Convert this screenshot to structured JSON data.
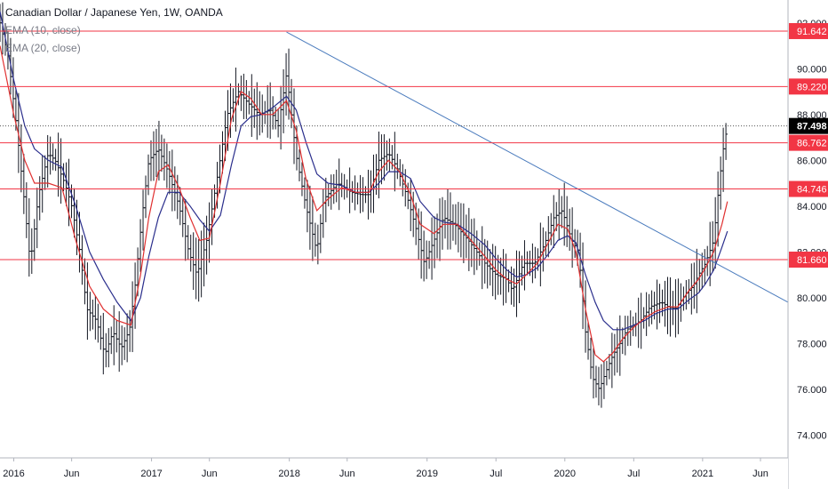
{
  "chart_data": {
    "type": "line",
    "title": "Canadian Dollar / Japanese Yen, 1W, OANDA",
    "indicators": [
      "EMA (10, close)",
      "EMA (20, close)"
    ],
    "x_axis_labels": [
      "2016",
      "Jun",
      "2017",
      "Jun",
      "2018",
      "Jun",
      "2019",
      "Jul",
      "2020",
      "Jul",
      "2021",
      "Jun"
    ],
    "x_axis_label_t": [
      2016.0,
      2016.42,
      2017.0,
      2017.42,
      2018.0,
      2018.42,
      2019.0,
      2019.5,
      2020.0,
      2020.5,
      2021.0,
      2021.42
    ],
    "xlim": [
      2015.9,
      2021.62
    ],
    "ylim": [
      73.0,
      93.0
    ],
    "y_ticks": [
      74.0,
      76.0,
      78.0,
      80.0,
      82.0,
      84.0,
      86.0,
      88.0,
      90.0,
      92.0
    ],
    "y_tick_labels": [
      "74.000",
      "76.000",
      "78.000",
      "80.000",
      "82.000",
      "84.000",
      "86.000",
      "88.000",
      "90.000",
      "92.000"
    ],
    "horizontal_levels": [
      91.642,
      89.22,
      86.762,
      84.746,
      81.66
    ],
    "horizontal_level_labels": [
      "91.642",
      "89.220",
      "86.762",
      "84.746",
      "81.660"
    ],
    "last_price": 87.498,
    "last_price_label": "87.498",
    "trendline": [
      [
        2017.98,
        91.6
      ],
      [
        2021.62,
        79.8
      ]
    ],
    "series": [
      {
        "values": [
          [
            2015.9,
            92.0
          ],
          [
            2015.96,
            90.5
          ],
          [
            2016.02,
            87.5
          ],
          [
            2016.08,
            84.0
          ],
          [
            2016.12,
            81.5
          ],
          [
            2016.18,
            84.5
          ],
          [
            2016.25,
            86.3
          ],
          [
            2016.3,
            86.0
          ],
          [
            2016.37,
            85.0
          ],
          [
            2016.42,
            84.0
          ],
          [
            2016.48,
            82.0
          ],
          [
            2016.53,
            79.5
          ],
          [
            2016.6,
            79.0
          ],
          [
            2016.66,
            77.5
          ],
          [
            2016.72,
            78.5
          ],
          [
            2016.78,
            77.8
          ],
          [
            2016.84,
            78.6
          ],
          [
            2016.88,
            80.5
          ],
          [
            2016.93,
            83.5
          ],
          [
            2016.98,
            86.0
          ],
          [
            2017.05,
            86.5
          ],
          [
            2017.12,
            85.5
          ],
          [
            2017.2,
            84.0
          ],
          [
            2017.27,
            82.0
          ],
          [
            2017.33,
            81.0
          ],
          [
            2017.4,
            82.5
          ],
          [
            2017.47,
            85.0
          ],
          [
            2017.55,
            88.0
          ],
          [
            2017.63,
            89.0
          ],
          [
            2017.7,
            88.5
          ],
          [
            2017.78,
            88.0
          ],
          [
            2017.86,
            88.2
          ],
          [
            2017.92,
            87.5
          ],
          [
            2017.98,
            89.8
          ],
          [
            2018.05,
            86.2
          ],
          [
            2018.12,
            84.0
          ],
          [
            2018.2,
            82.0
          ],
          [
            2018.25,
            84.3
          ],
          [
            2018.35,
            85.0
          ],
          [
            2018.45,
            84.6
          ],
          [
            2018.52,
            84.5
          ],
          [
            2018.58,
            84.5
          ],
          [
            2018.65,
            86.0
          ],
          [
            2018.72,
            86.3
          ],
          [
            2018.78,
            85.7
          ],
          [
            2018.85,
            84.5
          ],
          [
            2018.92,
            83.0
          ],
          [
            2018.98,
            81.5
          ],
          [
            2019.05,
            82.5
          ],
          [
            2019.12,
            83.5
          ],
          [
            2019.2,
            83.2
          ],
          [
            2019.3,
            82.5
          ],
          [
            2019.42,
            81.5
          ],
          [
            2019.5,
            81.0
          ],
          [
            2019.58,
            80.8
          ],
          [
            2019.62,
            80.3
          ],
          [
            2019.7,
            81.5
          ],
          [
            2019.78,
            81.5
          ],
          [
            2019.85,
            82.3
          ],
          [
            2019.92,
            83.5
          ],
          [
            2019.98,
            83.8
          ],
          [
            2020.05,
            82.5
          ],
          [
            2020.1,
            82.0
          ],
          [
            2020.15,
            78.5
          ],
          [
            2020.2,
            76.5
          ],
          [
            2020.25,
            76.0
          ],
          [
            2020.3,
            76.8
          ],
          [
            2020.35,
            77.5
          ],
          [
            2020.4,
            78.0
          ],
          [
            2020.45,
            78.6
          ],
          [
            2020.55,
            79.0
          ],
          [
            2020.62,
            79.6
          ],
          [
            2020.7,
            79.8
          ],
          [
            2020.75,
            79.6
          ],
          [
            2020.8,
            79.5
          ],
          [
            2020.88,
            80.2
          ],
          [
            2020.93,
            80.5
          ],
          [
            2020.97,
            81.0
          ],
          [
            2021.02,
            81.5
          ],
          [
            2021.08,
            82.5
          ],
          [
            2021.12,
            85.0
          ],
          [
            2021.15,
            86.5
          ],
          [
            2021.18,
            87.498
          ]
        ]
      },
      {
        "values": [
          [
            2015.9,
            91.0
          ],
          [
            2016.0,
            88.0
          ],
          [
            2016.08,
            86.0
          ],
          [
            2016.15,
            85.0
          ],
          [
            2016.25,
            85.0
          ],
          [
            2016.35,
            84.8
          ],
          [
            2016.45,
            82.5
          ],
          [
            2016.55,
            80.5
          ],
          [
            2016.65,
            79.5
          ],
          [
            2016.75,
            79.0
          ],
          [
            2016.85,
            78.8
          ],
          [
            2016.92,
            81.0
          ],
          [
            2016.98,
            83.5
          ],
          [
            2017.05,
            85.5
          ],
          [
            2017.12,
            85.8
          ],
          [
            2017.2,
            84.8
          ],
          [
            2017.28,
            83.5
          ],
          [
            2017.35,
            82.5
          ],
          [
            2017.42,
            82.6
          ],
          [
            2017.5,
            85.0
          ],
          [
            2017.58,
            87.8
          ],
          [
            2017.65,
            89.0
          ],
          [
            2017.72,
            88.7
          ],
          [
            2017.8,
            88.0
          ],
          [
            2017.88,
            88.0
          ],
          [
            2017.98,
            88.6
          ],
          [
            2018.05,
            87.3
          ],
          [
            2018.12,
            85.2
          ],
          [
            2018.2,
            83.8
          ],
          [
            2018.28,
            84.3
          ],
          [
            2018.38,
            84.8
          ],
          [
            2018.48,
            84.6
          ],
          [
            2018.58,
            84.6
          ],
          [
            2018.65,
            85.5
          ],
          [
            2018.72,
            86.0
          ],
          [
            2018.8,
            85.5
          ],
          [
            2018.88,
            84.5
          ],
          [
            2018.95,
            83.2
          ],
          [
            2019.05,
            82.8
          ],
          [
            2019.12,
            83.2
          ],
          [
            2019.22,
            83.2
          ],
          [
            2019.32,
            82.5
          ],
          [
            2019.42,
            81.8
          ],
          [
            2019.5,
            81.2
          ],
          [
            2019.58,
            80.8
          ],
          [
            2019.65,
            80.6
          ],
          [
            2019.72,
            81.0
          ],
          [
            2019.8,
            81.5
          ],
          [
            2019.88,
            82.4
          ],
          [
            2019.95,
            83.2
          ],
          [
            2020.02,
            83.0
          ],
          [
            2020.08,
            82.0
          ],
          [
            2020.15,
            79.5
          ],
          [
            2020.22,
            77.5
          ],
          [
            2020.28,
            77.2
          ],
          [
            2020.35,
            77.6
          ],
          [
            2020.42,
            78.2
          ],
          [
            2020.5,
            78.7
          ],
          [
            2020.58,
            79.1
          ],
          [
            2020.66,
            79.4
          ],
          [
            2020.75,
            79.6
          ],
          [
            2020.82,
            79.6
          ],
          [
            2020.9,
            80.3
          ],
          [
            2020.97,
            80.8
          ],
          [
            2021.02,
            81.3
          ],
          [
            2021.08,
            82.0
          ],
          [
            2021.14,
            83.2
          ],
          [
            2021.18,
            84.2
          ]
        ]
      },
      {
        "values": [
          [
            2015.9,
            92.5
          ],
          [
            2016.0,
            89.5
          ],
          [
            2016.08,
            87.5
          ],
          [
            2016.15,
            86.5
          ],
          [
            2016.25,
            86.0
          ],
          [
            2016.35,
            85.7
          ],
          [
            2016.45,
            84.0
          ],
          [
            2016.55,
            82.0
          ],
          [
            2016.65,
            80.8
          ],
          [
            2016.75,
            79.8
          ],
          [
            2016.85,
            79.0
          ],
          [
            2016.92,
            80.0
          ],
          [
            2016.98,
            81.8
          ],
          [
            2017.05,
            83.5
          ],
          [
            2017.12,
            84.6
          ],
          [
            2017.2,
            84.6
          ],
          [
            2017.28,
            84.0
          ],
          [
            2017.35,
            83.4
          ],
          [
            2017.42,
            82.9
          ],
          [
            2017.5,
            83.6
          ],
          [
            2017.58,
            85.8
          ],
          [
            2017.65,
            87.5
          ],
          [
            2017.72,
            87.9
          ],
          [
            2017.8,
            88.0
          ],
          [
            2017.88,
            88.3
          ],
          [
            2017.98,
            88.8
          ],
          [
            2018.05,
            88.2
          ],
          [
            2018.12,
            86.8
          ],
          [
            2018.2,
            85.4
          ],
          [
            2018.28,
            85.0
          ],
          [
            2018.38,
            84.9
          ],
          [
            2018.48,
            84.6
          ],
          [
            2018.58,
            84.6
          ],
          [
            2018.65,
            85.0
          ],
          [
            2018.72,
            85.5
          ],
          [
            2018.8,
            85.5
          ],
          [
            2018.88,
            85.2
          ],
          [
            2018.95,
            84.2
          ],
          [
            2019.05,
            83.5
          ],
          [
            2019.12,
            83.3
          ],
          [
            2019.22,
            83.2
          ],
          [
            2019.32,
            82.8
          ],
          [
            2019.42,
            82.3
          ],
          [
            2019.5,
            81.7
          ],
          [
            2019.58,
            81.2
          ],
          [
            2019.65,
            80.9
          ],
          [
            2019.72,
            81.0
          ],
          [
            2019.8,
            81.3
          ],
          [
            2019.88,
            81.9
          ],
          [
            2019.95,
            82.5
          ],
          [
            2020.02,
            82.7
          ],
          [
            2020.08,
            82.4
          ],
          [
            2020.15,
            81.0
          ],
          [
            2020.22,
            79.8
          ],
          [
            2020.28,
            79.0
          ],
          [
            2020.35,
            78.6
          ],
          [
            2020.42,
            78.6
          ],
          [
            2020.5,
            78.8
          ],
          [
            2020.58,
            79.0
          ],
          [
            2020.66,
            79.3
          ],
          [
            2020.75,
            79.5
          ],
          [
            2020.82,
            79.5
          ],
          [
            2020.9,
            79.9
          ],
          [
            2020.97,
            80.2
          ],
          [
            2021.02,
            80.6
          ],
          [
            2021.08,
            81.2
          ],
          [
            2021.14,
            82.2
          ],
          [
            2021.18,
            82.9
          ]
        ]
      }
    ],
    "colors": {
      "bars": "#131722",
      "ema10": "#e03030",
      "ema20": "#2a2e8c",
      "trendline": "#4a7bbd",
      "levels": "#f23645",
      "axis_text": "#131722",
      "last_price_bg": "#000000"
    },
    "grid": false
  }
}
